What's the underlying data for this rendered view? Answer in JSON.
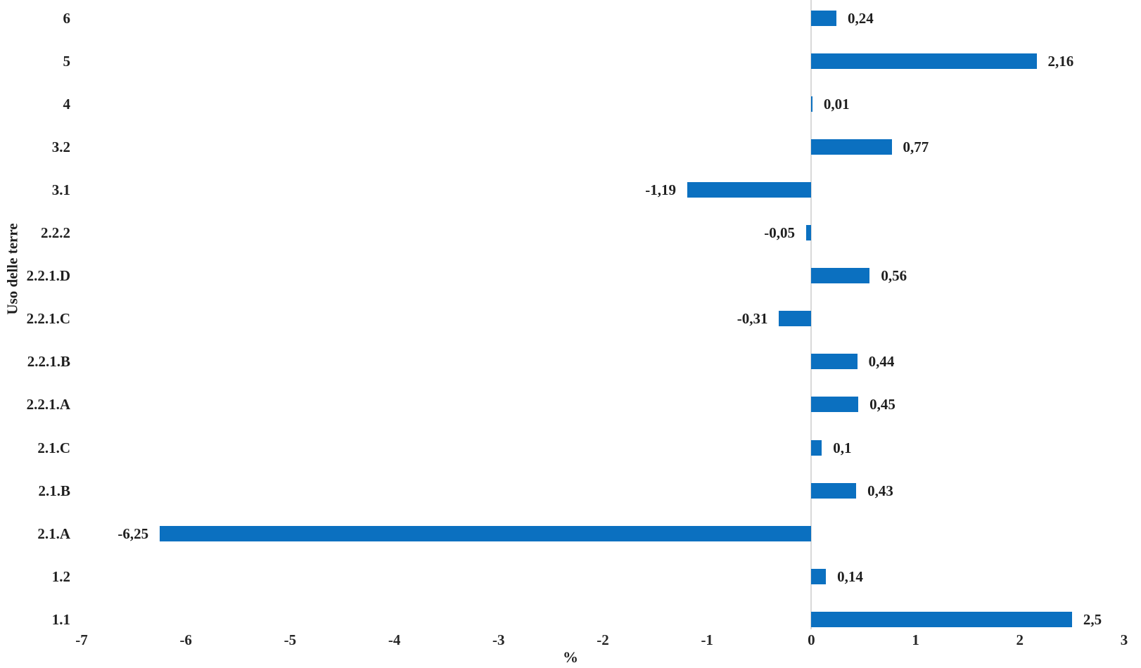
{
  "chart_data": {
    "type": "bar",
    "orientation": "horizontal",
    "title": "",
    "xlabel": "%",
    "ylabel": "Uso delle terre",
    "categories_top_to_bottom": [
      "6",
      "5",
      "4",
      "3.2",
      "3.1",
      "2.2.2",
      "2.2.1.D",
      "2.2.1.C",
      "2.2.1.B",
      "2.2.1.A",
      "2.1.C",
      "2.1.B",
      "2.1.A",
      "1.2",
      "1.1"
    ],
    "values": [
      0.24,
      2.16,
      0.01,
      0.77,
      -1.19,
      -0.05,
      0.56,
      -0.31,
      0.44,
      0.45,
      0.1,
      0.43,
      -6.25,
      0.14,
      2.5
    ],
    "data_labels": [
      "0,24",
      "2,16",
      "0,01",
      "0,77",
      "-1,19",
      "-0,05",
      "0,56",
      "-0,31",
      "0,44",
      "0,45",
      "0,1",
      "0,43",
      "-6,25",
      "0,14",
      "2,5"
    ],
    "xlim": [
      -7,
      3
    ],
    "x_tick_labels": [
      "-7",
      "-6",
      "-5",
      "-4",
      "-3",
      "-2",
      "-1",
      "0",
      "1",
      "2",
      "3"
    ],
    "x_tick_values": [
      -7,
      -6,
      -5,
      -4,
      -3,
      -2,
      -1,
      0,
      1,
      2,
      3
    ],
    "legend": "none",
    "grid": "zero-line-only",
    "colors": {
      "bar": "#0b70c0",
      "zero_line": "#d9d9d9",
      "text": "#1f1f1f",
      "background": "#ffffff"
    }
  }
}
